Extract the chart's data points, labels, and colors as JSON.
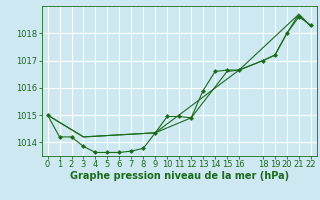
{
  "background_color": "#cde8f0",
  "grid_color": "#ffffff",
  "line_color": "#1a6b1a",
  "marker_color": "#1a6b1a",
  "xlabel": "Graphe pression niveau de la mer (hPa)",
  "xlim": [
    -0.5,
    22.5
  ],
  "ylim": [
    1013.5,
    1019.0
  ],
  "yticks": [
    1014,
    1015,
    1016,
    1017,
    1018
  ],
  "xticks": [
    0,
    1,
    2,
    3,
    4,
    5,
    6,
    7,
    8,
    9,
    10,
    11,
    12,
    13,
    14,
    15,
    16,
    18,
    19,
    20,
    21,
    22
  ],
  "series1_x": [
    0,
    1,
    2,
    3,
    4,
    5,
    6,
    7,
    8,
    9,
    10,
    11,
    12,
    13,
    14,
    15,
    16,
    18,
    19,
    20,
    21,
    22
  ],
  "series1_y": [
    1015.0,
    1014.2,
    1014.2,
    1013.85,
    1013.63,
    1013.63,
    1013.63,
    1013.68,
    1013.78,
    1014.35,
    1014.95,
    1014.95,
    1014.9,
    1015.9,
    1016.6,
    1016.65,
    1016.65,
    1017.0,
    1017.2,
    1018.0,
    1018.6,
    1018.3
  ],
  "series2_x": [
    0,
    3,
    9,
    12,
    15,
    16,
    18,
    19,
    20,
    21,
    22
  ],
  "series2_y": [
    1015.0,
    1014.2,
    1014.35,
    1014.9,
    1016.6,
    1016.65,
    1017.0,
    1017.2,
    1018.0,
    1018.7,
    1018.25
  ],
  "series3_x": [
    0,
    3,
    9,
    16,
    21,
    22
  ],
  "series3_y": [
    1015.0,
    1014.2,
    1014.35,
    1016.65,
    1018.7,
    1018.25
  ],
  "xlabel_fontsize": 7,
  "tick_fontsize": 6
}
